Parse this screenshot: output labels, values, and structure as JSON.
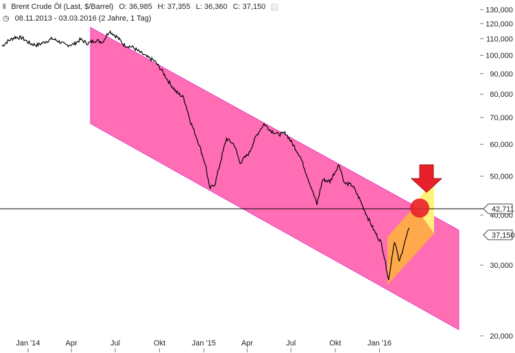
{
  "header": {
    "icon": "chart-bars-icon",
    "title": "Brent Crude Öl (Last, $/Barrel)",
    "open": "O: 36,985",
    "high": "H: 37,355",
    "low": "L: 36,360",
    "close": "C: 37,150",
    "settings_icon": "gear-icon",
    "clock_icon": "clock-icon",
    "range": "08.11.2013 - 03.03.2016 (2 Jahre, 1 Tag)"
  },
  "chart_data": {
    "type": "line",
    "title": "Brent Crude Öl (Last, $/Barrel)",
    "y_scale": "log",
    "ylim": [
      20,
      130
    ],
    "y_ticks": [
      "130,000",
      "120,000",
      "110,000",
      "100,000",
      "90,000",
      "80,000",
      "70,000",
      "60,000",
      "50,000",
      "40,000",
      "30,000",
      "20,000"
    ],
    "x_ticks": [
      "Jan '14",
      "Apr",
      "Jul",
      "Okt",
      "Jan '15",
      "Apr",
      "Jul",
      "Okt",
      "Jan '16"
    ],
    "series": [
      {
        "color": "#000000",
        "points": [
          [
            "2013-11-08",
            105.5
          ],
          [
            "2013-11-20",
            108.5
          ],
          [
            "2013-12-05",
            111
          ],
          [
            "2013-12-20",
            110.5
          ],
          [
            "2014-01-05",
            107
          ],
          [
            "2014-01-20",
            106
          ],
          [
            "2014-02-05",
            108
          ],
          [
            "2014-02-20",
            110
          ],
          [
            "2014-03-05",
            108.5
          ],
          [
            "2014-03-20",
            106
          ],
          [
            "2014-04-05",
            106.5
          ],
          [
            "2014-04-20",
            109.5
          ],
          [
            "2014-05-05",
            107
          ],
          [
            "2014-05-20",
            109
          ],
          [
            "2014-06-05",
            108
          ],
          [
            "2014-06-19",
            115
          ],
          [
            "2014-07-05",
            111
          ],
          [
            "2014-07-20",
            106
          ],
          [
            "2014-08-05",
            105
          ],
          [
            "2014-08-20",
            102
          ],
          [
            "2014-09-05",
            99
          ],
          [
            "2014-09-20",
            97
          ],
          [
            "2014-10-05",
            92
          ],
          [
            "2014-10-20",
            86
          ],
          [
            "2014-11-05",
            81
          ],
          [
            "2014-11-20",
            78.5
          ],
          [
            "2014-12-05",
            68
          ],
          [
            "2014-12-20",
            61
          ],
          [
            "2015-01-05",
            53
          ],
          [
            "2015-01-13",
            46.5
          ],
          [
            "2015-01-25",
            48
          ],
          [
            "2015-02-05",
            54.5
          ],
          [
            "2015-02-17",
            62
          ],
          [
            "2015-03-05",
            60
          ],
          [
            "2015-03-17",
            54
          ],
          [
            "2015-04-05",
            57
          ],
          [
            "2015-04-20",
            63
          ],
          [
            "2015-05-06",
            67.5
          ],
          [
            "2015-05-20",
            65
          ],
          [
            "2015-06-05",
            63.5
          ],
          [
            "2015-06-20",
            64
          ],
          [
            "2015-07-05",
            60
          ],
          [
            "2015-07-20",
            56
          ],
          [
            "2015-08-05",
            49.5
          ],
          [
            "2015-08-24",
            42.5
          ],
          [
            "2015-09-05",
            49
          ],
          [
            "2015-09-20",
            48.5
          ],
          [
            "2015-10-09",
            53.5
          ],
          [
            "2015-10-20",
            48
          ],
          [
            "2015-11-05",
            47.5
          ],
          [
            "2015-11-20",
            44
          ],
          [
            "2015-12-05",
            40
          ],
          [
            "2015-12-21",
            36.5
          ],
          [
            "2016-01-05",
            34
          ],
          [
            "2016-01-20",
            27.5
          ],
          [
            "2016-02-01",
            34.5
          ],
          [
            "2016-02-11",
            30.5
          ],
          [
            "2016-02-20",
            33.5
          ],
          [
            "2016-03-03",
            37.15
          ]
        ]
      }
    ],
    "annotations": {
      "horizontal_line": {
        "value": 42.711,
        "label": "42,711"
      },
      "last_price": {
        "value": 37.15,
        "label": "37,150"
      },
      "down_channel_color": "#ff6db4",
      "up_channel_color": "#ffa94d",
      "projection_color": "#fff27a",
      "marker_color": "#e8202a",
      "arrow_color": "#e8202a"
    }
  }
}
